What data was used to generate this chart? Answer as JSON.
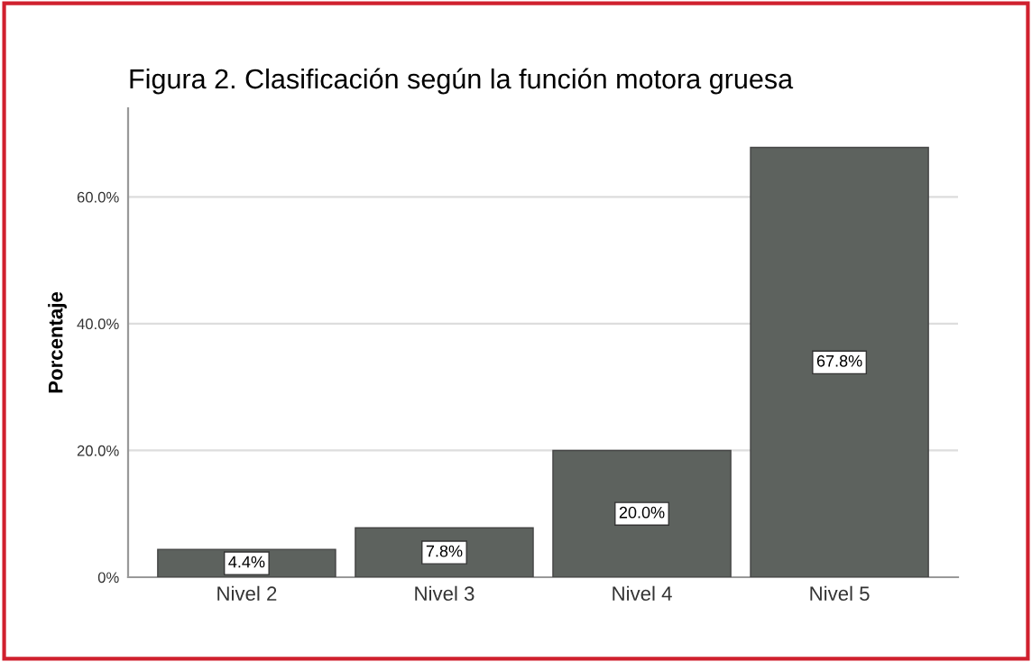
{
  "chart_data": {
    "type": "bar",
    "title": "Figura 2. Clasificación según la función motora gruesa",
    "ylabel": "Porcentaje",
    "categories": [
      "Nivel 2",
      "Nivel 3",
      "Nivel 4",
      "Nivel 5"
    ],
    "values": [
      4.4,
      7.8,
      20.0,
      67.8
    ],
    "color": "#5d625e",
    "value_labels": [
      "4.4%",
      "7.8%",
      "20.0%",
      "67.8%"
    ],
    "ylim": [
      0,
      74
    ],
    "yticks": [
      {
        "value": 0,
        "label": "0%"
      },
      {
        "value": 20,
        "label": "20.0%"
      },
      {
        "value": 40,
        "label": "40.0%"
      },
      {
        "value": 60,
        "label": "60.0%"
      }
    ],
    "grid": "y"
  }
}
